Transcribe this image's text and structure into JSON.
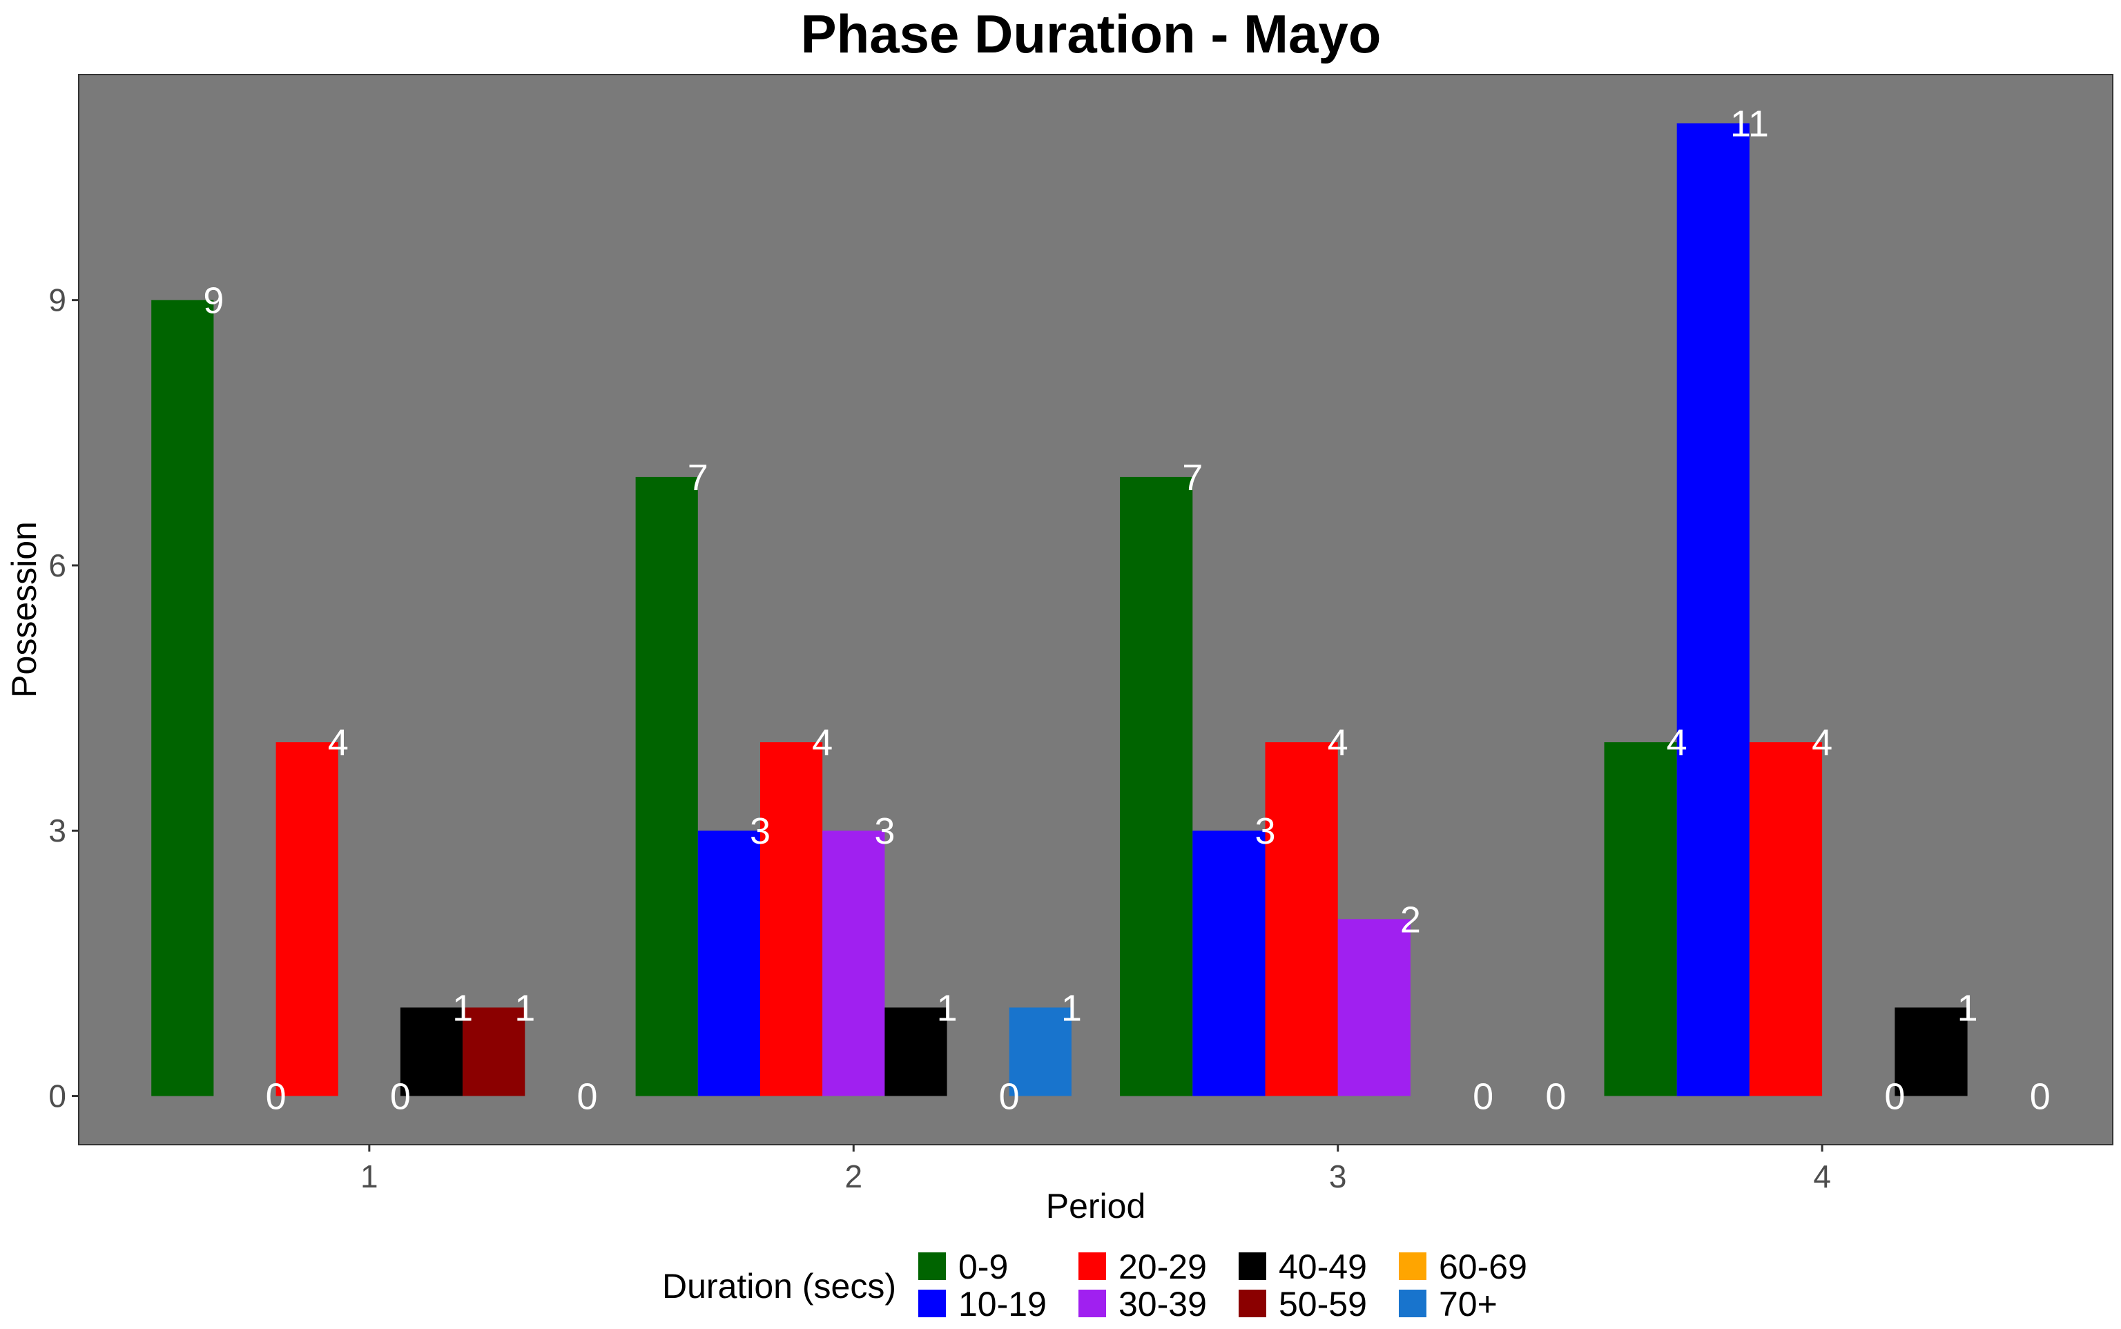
{
  "chart_data": {
    "type": "bar",
    "title": "Phase Duration - Mayo",
    "xlabel": "Period",
    "ylabel": "Possession",
    "categories": [
      "1",
      "2",
      "3",
      "4"
    ],
    "ylim": [
      -0.55,
      11.55
    ],
    "yticks": [
      0,
      3,
      6,
      9
    ],
    "grid": false,
    "background": "#7a7a7a",
    "legend": {
      "title": "Duration (secs)",
      "position": "bottom",
      "items": [
        {
          "label": "0-9",
          "color": "#006400"
        },
        {
          "label": "10-19",
          "color": "#0000ff"
        },
        {
          "label": "20-29",
          "color": "#ff0000"
        },
        {
          "label": "30-39",
          "color": "#a020f0"
        },
        {
          "label": "40-49",
          "color": "#000000"
        },
        {
          "label": "50-59",
          "color": "#8b0000"
        },
        {
          "label": "60-69",
          "color": "#ffa500"
        },
        {
          "label": "70+",
          "color": "#1874cd"
        }
      ]
    },
    "groups": [
      {
        "period": "1",
        "bars": [
          {
            "series": "0-9",
            "value": 9
          },
          {
            "series": "10-19",
            "value": 0
          },
          {
            "series": "20-29",
            "value": 4
          },
          {
            "series": "30-39",
            "value": 0
          },
          {
            "series": "40-49",
            "value": 1
          },
          {
            "series": "50-59",
            "value": 1
          },
          {
            "series": "70+",
            "value": 0
          }
        ]
      },
      {
        "period": "2",
        "bars": [
          {
            "series": "0-9",
            "value": 7
          },
          {
            "series": "10-19",
            "value": 3
          },
          {
            "series": "20-29",
            "value": 4
          },
          {
            "series": "30-39",
            "value": 3
          },
          {
            "series": "40-49",
            "value": 1
          },
          {
            "series": "60-69",
            "value": 0
          },
          {
            "series": "70+",
            "value": 1
          }
        ]
      },
      {
        "period": "3",
        "bars": [
          {
            "series": "0-9",
            "value": 7
          },
          {
            "series": "10-19",
            "value": 3
          },
          {
            "series": "20-29",
            "value": 4
          },
          {
            "series": "30-39",
            "value": 2
          },
          {
            "series": "40-49",
            "value": 0
          },
          {
            "series": "50-59",
            "value": 0
          }
        ]
      },
      {
        "period": "4",
        "bars": [
          {
            "series": "0-9",
            "value": 4
          },
          {
            "series": "10-19",
            "value": 11
          },
          {
            "series": "20-29",
            "value": 4
          },
          {
            "series": "30-39",
            "value": 0
          },
          {
            "series": "40-49",
            "value": 1
          },
          {
            "series": "50-59",
            "value": 0
          }
        ]
      }
    ]
  }
}
